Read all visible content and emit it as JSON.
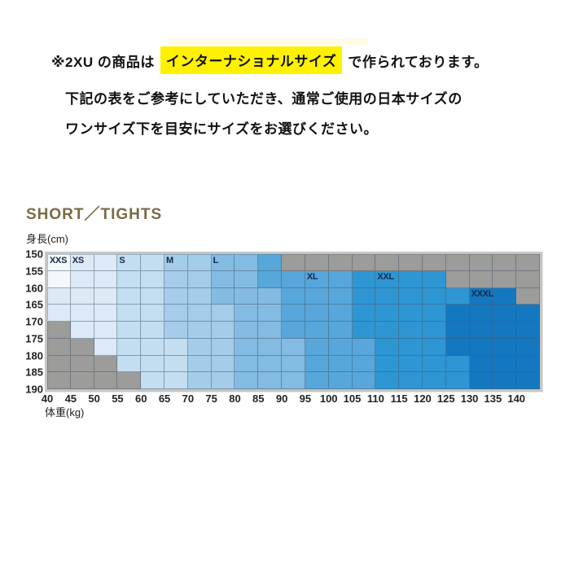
{
  "note": {
    "line1_prefix": "※2XU の商品は",
    "line1_highlight": "インターナショナルサイズ",
    "line1_suffix": "で作られております。",
    "line2": "下記の表をご参考にしていただき、通常ご使用の日本サイズの",
    "line3": "ワンサイズ下を目安にサイズをお選びください。",
    "highlight_color": "#fff100",
    "text_color": "#111111"
  },
  "title": {
    "text": "SHORT／TIGHTS",
    "color": "#7a6a45"
  },
  "chart_data": {
    "type": "heatmap",
    "title": "SHORT／TIGHTS",
    "xlabel": "体重(kg)",
    "ylabel": "身長(cm)",
    "x_axis": {
      "min": 40,
      "max": 140,
      "step": 5,
      "unit": "kg",
      "ticks": [
        40,
        45,
        50,
        55,
        60,
        65,
        70,
        75,
        80,
        85,
        90,
        95,
        100,
        105,
        110,
        115,
        120,
        125,
        130,
        135,
        140
      ]
    },
    "y_axis": {
      "min": 150,
      "max": 190,
      "step": 5,
      "unit": "cm",
      "ticks": [
        150,
        155,
        160,
        165,
        170,
        175,
        180,
        185,
        190
      ]
    },
    "sizes": [
      "XXS",
      "XS",
      "S",
      "M",
      "L",
      "XL",
      "XXL",
      "XXXL"
    ],
    "size_for_level": {
      "0": "out-of-range",
      "1": "XXS",
      "2": "XS",
      "3": "S",
      "4": "M",
      "5": "L",
      "6": "XL",
      "7": "XXL",
      "8": "XXXL"
    },
    "palette": [
      "#9c9c9a",
      "#f2f8fc",
      "#dbeaf6",
      "#c3ddf1",
      "#a5cdea",
      "#83bbe2",
      "#57a7da",
      "#2d96d3",
      "#1478c0"
    ],
    "gridline_color": "rgba(70,88,105,0.5)",
    "size_labels": [
      {
        "label": "XXS",
        "row": 0,
        "col": 0
      },
      {
        "label": "XS",
        "row": 0,
        "col": 1
      },
      {
        "label": "S",
        "row": 0,
        "col": 3
      },
      {
        "label": "M",
        "row": 0,
        "col": 5
      },
      {
        "label": "L",
        "row": 0,
        "col": 7
      },
      {
        "label": "XL",
        "row": 1,
        "col": 11
      },
      {
        "label": "XXL",
        "row": 1,
        "col": 14
      },
      {
        "label": "XXXL",
        "row": 2,
        "col": 18
      }
    ],
    "grid": [
      [
        1,
        2,
        2,
        3,
        3,
        4,
        4,
        5,
        5,
        6,
        0,
        0,
        0,
        0,
        0,
        0,
        0,
        0,
        0,
        0,
        0
      ],
      [
        1,
        2,
        2,
        3,
        3,
        4,
        4,
        5,
        5,
        6,
        6,
        6,
        6,
        7,
        7,
        7,
        7,
        0,
        0,
        0,
        0
      ],
      [
        2,
        2,
        2,
        3,
        3,
        4,
        4,
        5,
        5,
        5,
        6,
        6,
        6,
        7,
        7,
        7,
        7,
        7,
        8,
        8,
        0
      ],
      [
        2,
        2,
        2,
        3,
        3,
        4,
        4,
        4,
        5,
        5,
        6,
        6,
        6,
        7,
        7,
        7,
        7,
        8,
        8,
        8,
        8
      ],
      [
        0,
        2,
        2,
        3,
        3,
        4,
        4,
        4,
        5,
        5,
        6,
        6,
        6,
        7,
        7,
        7,
        7,
        8,
        8,
        8,
        8
      ],
      [
        0,
        0,
        2,
        3,
        3,
        3,
        4,
        4,
        5,
        5,
        5,
        6,
        6,
        6,
        7,
        7,
        7,
        8,
        8,
        8,
        8
      ],
      [
        0,
        0,
        0,
        3,
        3,
        3,
        4,
        4,
        5,
        5,
        5,
        6,
        6,
        6,
        7,
        7,
        7,
        7,
        8,
        8,
        8
      ],
      [
        0,
        0,
        0,
        0,
        3,
        3,
        4,
        4,
        5,
        5,
        5,
        6,
        6,
        6,
        7,
        7,
        7,
        7,
        8,
        8,
        8
      ]
    ]
  }
}
